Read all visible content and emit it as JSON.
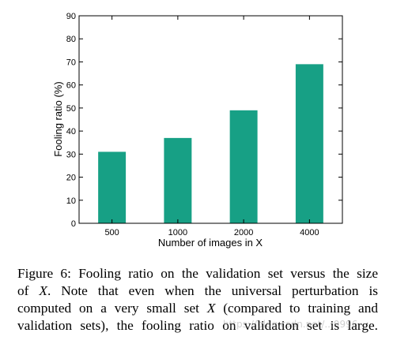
{
  "chart_data": {
    "type": "bar",
    "categories": [
      "500",
      "1000",
      "2000",
      "4000"
    ],
    "values": [
      31,
      37,
      49,
      69
    ],
    "xlabel": "Number of images in X",
    "ylabel": "Fooling ratio (%)",
    "ylim": [
      0,
      90
    ],
    "yticks": [
      0,
      10,
      20,
      30,
      40,
      50,
      60,
      70,
      80,
      90
    ],
    "grid": false,
    "bar_color": "#17a085"
  },
  "caption": {
    "lines": [
      "Figure 6:  Fooling ratio on the validation set versus the size",
      "of X.  Note that even when the universal perturbation is",
      "computed on a very small set X (compared to training and",
      "validation sets), the fooling ratio on validation set is large."
    ]
  },
  "watermark": "https://blog.csdn.net/...0996"
}
